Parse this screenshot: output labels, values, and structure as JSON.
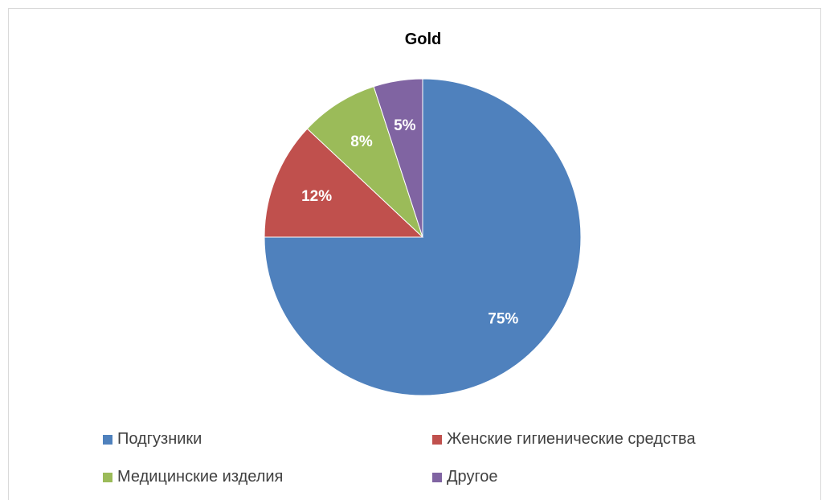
{
  "chart_data": {
    "type": "pie",
    "title": "Gold",
    "categories": [
      "Подгузники",
      "Женские гигиенические средства",
      "Медицинские изделия",
      "Другое"
    ],
    "values": [
      75,
      12,
      8,
      5
    ],
    "labels": [
      "75%",
      "12%",
      "8%",
      "5%"
    ],
    "colors": [
      "#4f81bd",
      "#c0504d",
      "#9bbb59",
      "#8064a2"
    ],
    "legend_position": "bottom"
  }
}
